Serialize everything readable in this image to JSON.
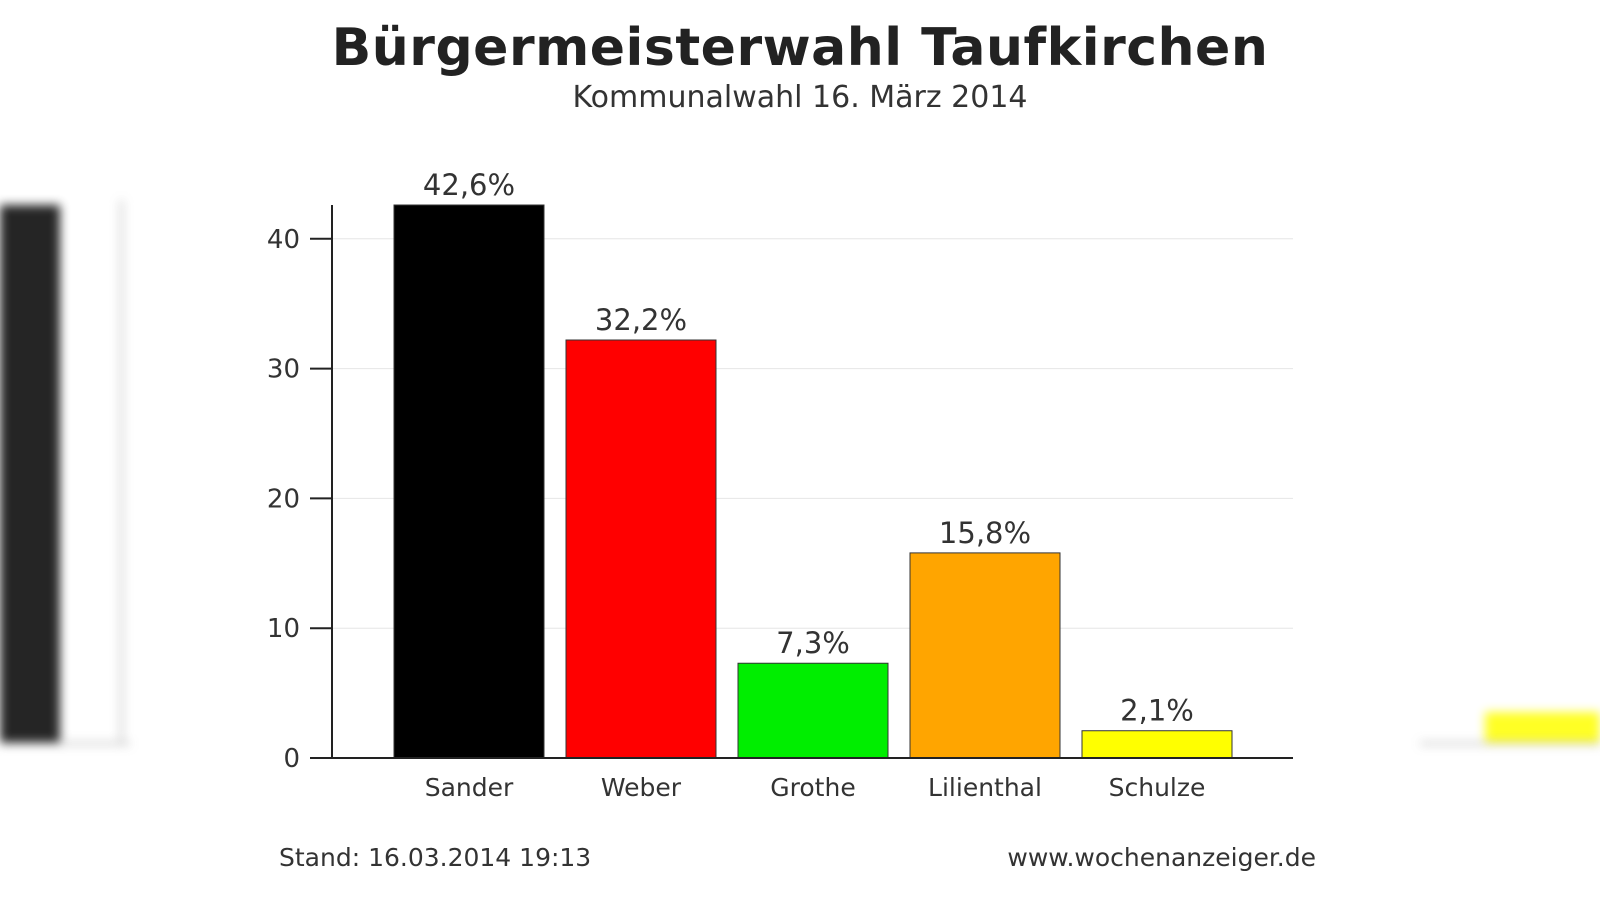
{
  "title": "Bürgermeisterwahl Taufkirchen",
  "subtitle": "Kommunalwahl 16. März 2014",
  "footer": {
    "stand": "Stand: 16.03.2014 19:13",
    "source": "www.wochenanzeiger.de"
  },
  "chart_data": {
    "type": "bar",
    "categories": [
      "Sander",
      "Weber",
      "Grothe",
      "Lilienthal",
      "Schulze"
    ],
    "values": [
      42.6,
      32.2,
      7.3,
      15.8,
      2.1
    ],
    "value_labels": [
      "42,6%",
      "32,2%",
      "7,3%",
      "15,8%",
      "2,1%"
    ],
    "colors": [
      "#000000",
      "#ff0000",
      "#00ee00",
      "#ffa500",
      "#ffff00"
    ],
    "title": "Bürgermeisterwahl Taufkirchen",
    "subtitle": "Kommunalwahl 16. März 2014",
    "xlabel": "",
    "ylabel": "",
    "ylim": [
      0,
      42.6
    ],
    "yticks": [
      0,
      10,
      20,
      30,
      40
    ],
    "grid": true,
    "legend": "none"
  }
}
